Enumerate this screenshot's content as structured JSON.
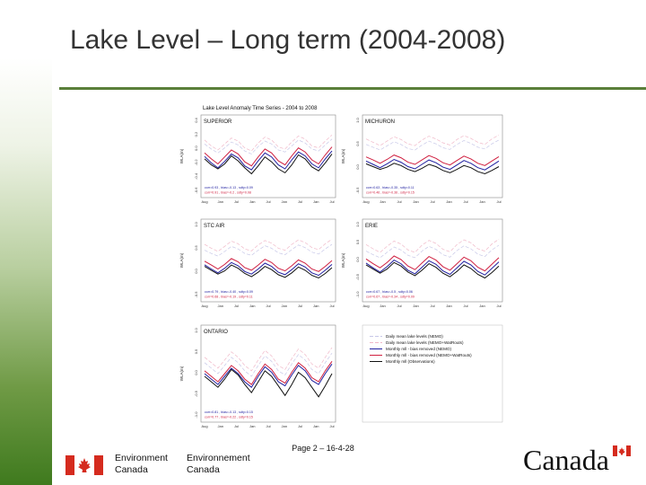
{
  "slide": {
    "title": "Lake Level – Long term (2004-2008)",
    "footer": "Page 2 – 16-4-28"
  },
  "logo": {
    "dept_en_line1": "Environment",
    "dept_en_line2": "Canada",
    "dept_fr_line1": "Environnement",
    "dept_fr_line2": "Canada",
    "wordmark": "Canada",
    "flag_color": "#d52b1e"
  },
  "chart_data": {
    "type": "line",
    "title": "Lake Level Anomaly Time Series - 2004 to 2008",
    "x_tick_labels": [
      "Aug",
      "Jan",
      "Jul",
      "Jan",
      "Jul",
      "Jan",
      "Jul",
      "Jan",
      "Jul"
    ],
    "ylabel": "WLA(m)",
    "legend": [
      {
        "label": "Daily mean lake levels (NEMO)",
        "color": "#c8c8e8",
        "dash": "4,2"
      },
      {
        "label": "Daily mean lake levels (NEMO+WatRouts)",
        "color": "#f0b8c8",
        "dash": "4,2"
      },
      {
        "label": "Monthly mll - bias removed (NEMO)",
        "color": "#2020a0",
        "dash": ""
      },
      {
        "label": "Monthly mll - bias removed (NEMO+WatRouts)",
        "color": "#d02040",
        "dash": ""
      },
      {
        "label": "Monthly mll (Observations)",
        "color": "#111111",
        "dash": ""
      }
    ],
    "panels": [
      {
        "name": "SUPERIOR",
        "yticks": [
          "0.4",
          "0.2",
          "0.0",
          "-0.2",
          "-0.4",
          "-0.6"
        ],
        "stats": [
          "corr=0.93 , bias=-0.13 , sdty=0.09",
          "corr=0.91 , bias=-0.2 , sdty=0.08"
        ]
      },
      {
        "name": "MICHURON",
        "yticks": [
          "1.0",
          "0.5",
          "0.0",
          "-0.5"
        ],
        "stats": [
          "corr=0.63 , bias=-0.35 , sdty=0.11",
          "corr=0.46 , bias=-0.36 , sdty=0.15"
        ]
      },
      {
        "name": "STC AIR",
        "yticks": [
          "1.0",
          "0.5",
          "0.0",
          "-0.5"
        ],
        "stats": [
          "corr=0.79 , bias=-0.40 , sdty=0.09",
          "corr=0.68 , bias=-0.19 , sdty=0.11"
        ]
      },
      {
        "name": "ERIE",
        "yticks": [
          "1.0",
          "0.5",
          "0.0",
          "-0.5",
          "-1.0"
        ],
        "stats": [
          "corr=0.67 , bias=-0.5 , sdty=0.06",
          "corr=0.67 , bias=-0.34 , sdty=0.09"
        ]
      },
      {
        "name": "ONTARIO",
        "yticks": [
          "1.0",
          "0.5",
          "0.0",
          "-0.5",
          "-1.0"
        ],
        "stats": [
          "corr=0.81 , bias=-0.13 , sdty=0.15",
          "corr=0.77 , bias=-0.22 , sdty=0.15"
        ]
      }
    ],
    "series_values": {
      "SUPERIOR": {
        "daily_nemo": [
          0.3,
          0.2,
          0.12,
          0.22,
          0.34,
          0.28,
          0.16,
          0.1,
          0.25,
          0.36,
          0.3,
          0.18,
          0.14,
          0.26,
          0.38,
          0.32,
          0.2,
          0.16,
          0.28,
          0.4
        ],
        "daily_wat": [
          0.38,
          0.26,
          0.18,
          0.3,
          0.42,
          0.36,
          0.22,
          0.16,
          0.32,
          0.44,
          0.38,
          0.24,
          0.2,
          0.34,
          0.46,
          0.4,
          0.26,
          0.22,
          0.36,
          0.48
        ],
        "monthly_nemo": [
          0.05,
          -0.08,
          -0.18,
          -0.05,
          0.1,
          0.02,
          -0.14,
          -0.22,
          -0.04,
          0.12,
          0.04,
          -0.12,
          -0.2,
          -0.02,
          0.14,
          0.06,
          -0.1,
          -0.18,
          0.0,
          0.16
        ],
        "monthly_wat": [
          0.12,
          0.0,
          -0.1,
          0.04,
          0.18,
          0.1,
          -0.06,
          -0.14,
          0.04,
          0.2,
          0.12,
          -0.04,
          -0.12,
          0.06,
          0.22,
          0.14,
          -0.02,
          -0.1,
          0.08,
          0.24
        ],
        "observed": [
          0.0,
          -0.12,
          -0.2,
          -0.1,
          0.06,
          -0.04,
          -0.18,
          -0.3,
          -0.14,
          0.04,
          -0.06,
          -0.2,
          -0.28,
          -0.12,
          0.08,
          0.0,
          -0.16,
          -0.24,
          -0.08,
          0.1
        ]
      },
      "MICHURON": {
        "daily_nemo": [
          0.5,
          0.4,
          0.3,
          0.45,
          0.6,
          0.5,
          0.35,
          0.3,
          0.48,
          0.62,
          0.52,
          0.38,
          0.32,
          0.5,
          0.64,
          0.54,
          0.4,
          0.34,
          0.52,
          0.66
        ],
        "daily_wat": [
          0.7,
          0.58,
          0.46,
          0.62,
          0.78,
          0.68,
          0.52,
          0.46,
          0.66,
          0.8,
          0.7,
          0.56,
          0.48,
          0.68,
          0.82,
          0.72,
          0.58,
          0.5,
          0.7,
          0.84
        ],
        "monthly_nemo": [
          -0.1,
          -0.22,
          -0.34,
          -0.2,
          -0.04,
          -0.14,
          -0.3,
          -0.38,
          -0.22,
          -0.06,
          -0.16,
          -0.32,
          -0.4,
          -0.24,
          -0.08,
          -0.18,
          -0.34,
          -0.42,
          -0.26,
          -0.1
        ],
        "monthly_wat": [
          0.05,
          -0.06,
          -0.18,
          -0.04,
          0.12,
          0.02,
          -0.14,
          -0.22,
          -0.06,
          0.1,
          0.0,
          -0.16,
          -0.24,
          -0.08,
          0.08,
          -0.02,
          -0.18,
          -0.26,
          -0.1,
          0.06
        ],
        "observed": [
          -0.2,
          -0.3,
          -0.4,
          -0.32,
          -0.18,
          -0.26,
          -0.4,
          -0.48,
          -0.36,
          -0.22,
          -0.3,
          -0.44,
          -0.52,
          -0.4,
          -0.26,
          -0.34,
          -0.48,
          -0.56,
          -0.44,
          -0.3
        ]
      },
      "STC AIR": {
        "daily_nemo": [
          0.4,
          0.3,
          0.22,
          0.36,
          0.52,
          0.44,
          0.3,
          0.24,
          0.4,
          0.54,
          0.46,
          0.32,
          0.26,
          0.42,
          0.56,
          0.48,
          0.34,
          0.28,
          0.44,
          0.58
        ],
        "daily_wat": [
          0.58,
          0.46,
          0.36,
          0.52,
          0.68,
          0.6,
          0.44,
          0.38,
          0.56,
          0.7,
          0.62,
          0.46,
          0.4,
          0.58,
          0.72,
          0.64,
          0.48,
          0.42,
          0.6,
          0.74
        ],
        "monthly_nemo": [
          -0.05,
          -0.18,
          -0.3,
          -0.16,
          0.02,
          -0.08,
          -0.26,
          -0.34,
          -0.18,
          0.0,
          -0.1,
          -0.28,
          -0.36,
          -0.2,
          -0.02,
          -0.12,
          -0.3,
          -0.38,
          -0.22,
          -0.04
        ],
        "monthly_wat": [
          0.06,
          -0.06,
          -0.18,
          -0.04,
          0.14,
          0.04,
          -0.14,
          -0.22,
          -0.06,
          0.12,
          0.02,
          -0.16,
          -0.24,
          -0.08,
          0.1,
          0.0,
          -0.18,
          -0.26,
          -0.1,
          0.08
        ],
        "observed": [
          -0.1,
          -0.22,
          -0.34,
          -0.24,
          -0.06,
          -0.16,
          -0.32,
          -0.42,
          -0.28,
          -0.1,
          -0.2,
          -0.36,
          -0.44,
          -0.3,
          -0.12,
          -0.22,
          -0.38,
          -0.46,
          -0.32,
          -0.14
        ]
      },
      "ERIE": {
        "daily_nemo": [
          0.3,
          0.18,
          0.08,
          0.26,
          0.44,
          0.34,
          0.16,
          0.08,
          0.3,
          0.46,
          0.36,
          0.18,
          0.1,
          0.32,
          0.48,
          0.38,
          0.2,
          0.12,
          0.34,
          0.5
        ],
        "daily_wat": [
          0.52,
          0.38,
          0.26,
          0.46,
          0.64,
          0.54,
          0.34,
          0.26,
          0.5,
          0.66,
          0.56,
          0.36,
          0.28,
          0.52,
          0.68,
          0.58,
          0.38,
          0.3,
          0.54,
          0.7
        ],
        "monthly_nemo": [
          -0.1,
          -0.26,
          -0.4,
          -0.22,
          0.0,
          -0.12,
          -0.34,
          -0.46,
          -0.24,
          -0.02,
          -0.14,
          -0.36,
          -0.48,
          -0.26,
          -0.04,
          -0.16,
          -0.38,
          -0.5,
          -0.28,
          -0.06
        ],
        "monthly_wat": [
          0.04,
          -0.12,
          -0.26,
          -0.08,
          0.14,
          0.02,
          -0.2,
          -0.32,
          -0.1,
          0.12,
          0.0,
          -0.22,
          -0.34,
          -0.12,
          0.1,
          -0.02,
          -0.24,
          -0.36,
          -0.14,
          0.08
        ],
        "observed": [
          -0.16,
          -0.3,
          -0.44,
          -0.3,
          -0.08,
          -0.2,
          -0.4,
          -0.52,
          -0.34,
          -0.12,
          -0.24,
          -0.44,
          -0.56,
          -0.38,
          -0.16,
          -0.28,
          -0.48,
          -0.6,
          -0.42,
          -0.2
        ]
      },
      "ONTARIO": {
        "daily_nemo": [
          0.4,
          0.2,
          0.0,
          0.3,
          0.6,
          0.4,
          0.1,
          -0.1,
          0.3,
          0.65,
          0.45,
          0.1,
          -0.05,
          0.35,
          0.7,
          0.5,
          0.15,
          0.0,
          0.4,
          0.75
        ],
        "daily_wat": [
          0.6,
          0.4,
          0.2,
          0.5,
          0.8,
          0.6,
          0.3,
          0.1,
          0.5,
          0.85,
          0.65,
          0.3,
          0.15,
          0.55,
          0.9,
          0.7,
          0.35,
          0.2,
          0.6,
          0.95
        ],
        "monthly_nemo": [
          0.0,
          -0.2,
          -0.4,
          -0.1,
          0.2,
          0.0,
          -0.3,
          -0.5,
          -0.1,
          0.25,
          0.05,
          -0.3,
          -0.45,
          -0.05,
          0.3,
          0.1,
          -0.25,
          -0.4,
          0.0,
          0.35
        ],
        "monthly_wat": [
          0.1,
          -0.1,
          -0.3,
          0.0,
          0.3,
          0.1,
          -0.2,
          -0.4,
          0.0,
          0.35,
          0.15,
          -0.2,
          -0.35,
          0.05,
          0.4,
          0.2,
          -0.15,
          -0.3,
          0.1,
          0.45
        ],
        "observed": [
          -0.1,
          -0.3,
          -0.5,
          -0.2,
          0.15,
          -0.05,
          -0.4,
          -0.7,
          -0.3,
          0.1,
          -0.1,
          -0.45,
          -0.8,
          -0.4,
          0.05,
          -0.15,
          -0.5,
          -0.85,
          -0.45,
          0.0
        ]
      }
    }
  }
}
